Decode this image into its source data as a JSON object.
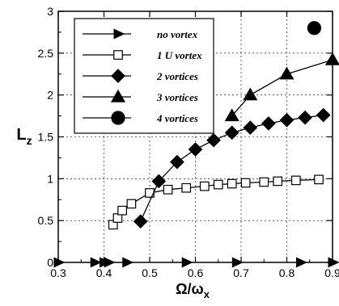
{
  "chart_data": {
    "type": "line",
    "title": "",
    "xlabel": "Ω/ω",
    "xlabel_sub": "x",
    "ylabel": "L",
    "ylabel_sub": "z",
    "xlim": [
      0.3,
      0.9
    ],
    "ylim": [
      0,
      3
    ],
    "xticks": [
      "0.3",
      "0.4",
      "0.5",
      "0.6",
      "0.7",
      "0.8",
      "0.9"
    ],
    "yticks": [
      "0",
      "0.5",
      "1",
      "1.5",
      "2",
      "2.5",
      "3"
    ],
    "grid": true,
    "legend_position": "top-left",
    "series": [
      {
        "name": "no vortex",
        "marker": "triangle-right",
        "filled": true,
        "connected": false,
        "x": [
          0.3,
          0.38,
          0.4,
          0.41,
          0.45,
          0.58,
          0.69,
          0.83,
          0.9
        ],
        "y": [
          0,
          0,
          0,
          0,
          0,
          0,
          0,
          0,
          0
        ]
      },
      {
        "name": "1 U vortex",
        "marker": "square",
        "filled": false,
        "connected": true,
        "x": [
          0.42,
          0.43,
          0.44,
          0.46,
          0.5,
          0.54,
          0.58,
          0.62,
          0.65,
          0.68,
          0.71,
          0.75,
          0.78,
          0.82,
          0.87
        ],
        "y": [
          0.45,
          0.53,
          0.62,
          0.7,
          0.83,
          0.87,
          0.89,
          0.91,
          0.93,
          0.94,
          0.95,
          0.96,
          0.97,
          0.98,
          0.99
        ]
      },
      {
        "name": "2 vortices",
        "marker": "diamond",
        "filled": true,
        "connected": true,
        "x": [
          0.48,
          0.52,
          0.56,
          0.6,
          0.64,
          0.68,
          0.72,
          0.76,
          0.8,
          0.84,
          0.88
        ],
        "y": [
          0.49,
          0.97,
          1.2,
          1.35,
          1.46,
          1.55,
          1.61,
          1.66,
          1.7,
          1.73,
          1.76
        ]
      },
      {
        "name": "3 vortices",
        "marker": "triangle-up",
        "filled": true,
        "connected": true,
        "x": [
          0.68,
          0.72,
          0.8,
          0.9
        ],
        "y": [
          1.75,
          2.0,
          2.25,
          2.42
        ]
      },
      {
        "name": "4 vortices",
        "marker": "circle",
        "filled": true,
        "connected": false,
        "x": [
          0.86
        ],
        "y": [
          2.8
        ]
      }
    ]
  }
}
